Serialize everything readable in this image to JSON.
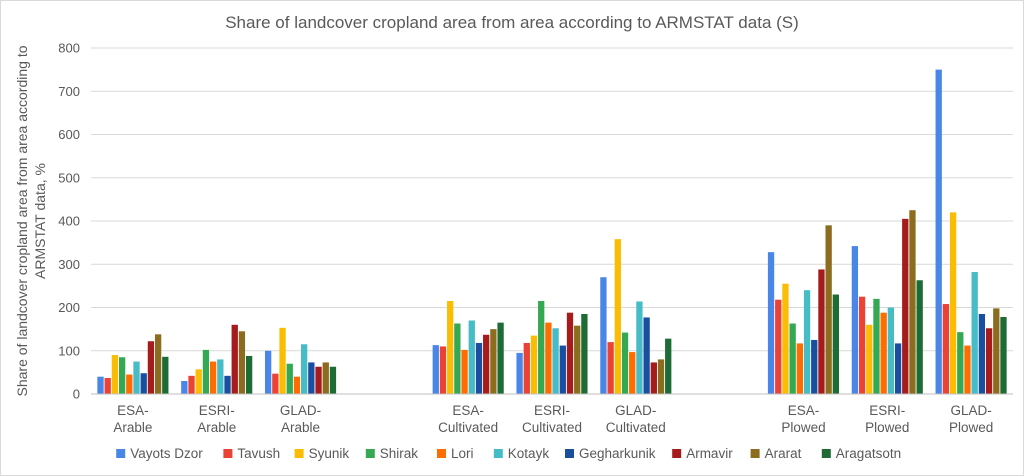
{
  "chart_data": {
    "type": "bar",
    "title": "Share of landcover cropland area from area according to ARMSTAT data (S)",
    "ylabel": "Share of landcover cropland area from area according to ARMSTAT data, %",
    "xlabel": "",
    "ylim": [
      0,
      800
    ],
    "yticks": [
      0,
      100,
      200,
      300,
      400,
      500,
      600,
      700,
      800
    ],
    "grid": true,
    "legend_position": "bottom",
    "groups": [
      {
        "categories": [
          "ESA-Arable",
          "ESRI-Arable",
          "GLAD-Arable"
        ],
        "lines": [
          [
            "ESA-",
            "Arable"
          ],
          [
            "ESRI-",
            "Arable"
          ],
          [
            "GLAD-",
            "Arable"
          ]
        ]
      },
      {
        "categories": [
          "ESA-Cultivated",
          "ESRI-Cultivated",
          "GLAD-Cultivated"
        ],
        "lines": [
          [
            "ESA-",
            "Cultivated"
          ],
          [
            "ESRI-",
            "Cultivated"
          ],
          [
            "GLAD-",
            "Cultivated"
          ]
        ]
      },
      {
        "categories": [
          "ESA-Plowed",
          "ESRI-Plowed",
          "GLAD-Plowed"
        ],
        "lines": [
          [
            "ESA-",
            "Plowed"
          ],
          [
            "ESRI-",
            "Plowed"
          ],
          [
            "GLAD-",
            "Plowed"
          ]
        ]
      }
    ],
    "categories": [
      "ESA-Arable",
      "ESRI-Arable",
      "GLAD-Arable",
      "ESA-Cultivated",
      "ESRI-Cultivated",
      "GLAD-Cultivated",
      "ESA-Plowed",
      "ESRI-Plowed",
      "GLAD-Plowed"
    ],
    "series": [
      {
        "name": "Vayots Dzor",
        "color": "#4a86e8",
        "values": [
          40,
          30,
          100,
          113,
          95,
          270,
          328,
          342,
          750
        ]
      },
      {
        "name": "Tavush",
        "color": "#ea4335",
        "values": [
          37,
          42,
          47,
          110,
          118,
          120,
          218,
          225,
          208
        ]
      },
      {
        "name": "Syunik",
        "color": "#fbbc04",
        "values": [
          90,
          57,
          153,
          215,
          135,
          358,
          255,
          160,
          420
        ]
      },
      {
        "name": "Shirak",
        "color": "#34a853",
        "values": [
          85,
          102,
          70,
          163,
          215,
          142,
          163,
          220,
          143
        ]
      },
      {
        "name": "Lori",
        "color": "#ff6d01",
        "values": [
          45,
          75,
          40,
          102,
          165,
          97,
          117,
          188,
          112
        ]
      },
      {
        "name": "Kotayk",
        "color": "#46bdc6",
        "values": [
          75,
          80,
          115,
          170,
          152,
          214,
          240,
          200,
          282
        ]
      },
      {
        "name": "Gegharkunik",
        "color": "#1a4fa0",
        "values": [
          48,
          42,
          73,
          118,
          112,
          177,
          125,
          117,
          185
        ]
      },
      {
        "name": "Armavir",
        "color": "#a61c1c",
        "values": [
          122,
          160,
          63,
          137,
          188,
          73,
          288,
          405,
          152
        ]
      },
      {
        "name": "Ararat",
        "color": "#8c6d1f",
        "values": [
          138,
          145,
          73,
          150,
          158,
          80,
          390,
          425,
          198
        ]
      },
      {
        "name": "Aragatsotn",
        "color": "#1f6b35",
        "values": [
          86,
          88,
          63,
          165,
          185,
          128,
          230,
          263,
          178
        ]
      }
    ]
  }
}
